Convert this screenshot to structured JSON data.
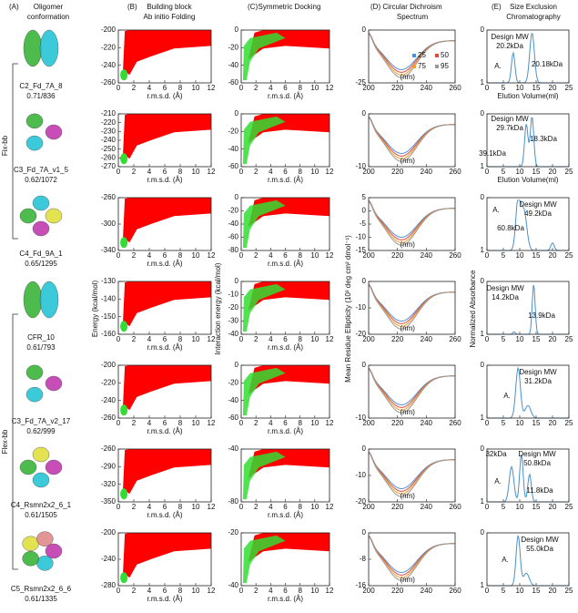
{
  "headers": [
    {
      "letter": "(A)",
      "lines": [
        "Oligomer",
        "conformation"
      ]
    },
    {
      "letter": "(B)",
      "lines": [
        "Building block",
        "Ab initio Folding"
      ]
    },
    {
      "letter": "(C)",
      "lines": [
        "Symmetric Docking"
      ]
    },
    {
      "letter": "(D)",
      "lines": [
        "Circular Dichroism",
        "Spectrum"
      ]
    },
    {
      "letter": "(E)",
      "lines": [
        "Size Exclusion",
        "Chromatography"
      ]
    }
  ],
  "side_labels": [
    "Fix-bb",
    "Flex-bb"
  ],
  "axis_titles": {
    "energy": "Energy (kcal/mol)",
    "interaction": "Interaction energy (kcal/mol)",
    "ellipticity": "Mean Residue Ellipticity (10³ deg cm² dmol⁻¹)",
    "absorbance": "Normalized Absorbance"
  },
  "xlabels": {
    "rmsd": "r.m.s.d. (Å)",
    "nm": "(nm)",
    "elution": "Elution Volume(ml)"
  },
  "xticks": {
    "rmsd": [
      0,
      2,
      4,
      6,
      8,
      10,
      12
    ],
    "nm": [
      200,
      220,
      240,
      260
    ],
    "elution": [
      0,
      5,
      10,
      15,
      20,
      25
    ]
  },
  "cd_legend": [
    25,
    50,
    75,
    95
  ],
  "rows": [
    {
      "name": "C2_Fd_7A_8",
      "score": "0.71/836",
      "folding_yticks": [
        -200,
        -220,
        -240,
        -260
      ],
      "docking_yticks": [
        0,
        -20,
        -40,
        -60
      ],
      "cd_yticks": [
        0,
        -25
      ],
      "sec_yticks": [
        0,
        1
      ],
      "sec_notes": [
        "Design MW",
        "20.2kDa",
        "A.",
        "20.18kDa"
      ]
    },
    {
      "name": "C3_Fd_7A_v1_5",
      "score": "0.62/1072",
      "folding_yticks": [
        -210,
        -220,
        -230,
        -240,
        -250,
        -260,
        -270
      ],
      "docking_yticks": [
        0,
        -20,
        -40,
        -60
      ],
      "cd_yticks": [
        0,
        -10
      ],
      "sec_yticks": [
        0,
        1
      ],
      "sec_notes": [
        "Design MW",
        "29.7kDa",
        "39.1kDa",
        "18.3kDa"
      ]
    },
    {
      "name": "C4_Fd_9A_1",
      "score": "0.65/1295",
      "folding_yticks": [
        -260,
        -300,
        -340
      ],
      "docking_yticks": [
        0,
        -20,
        -40,
        -60,
        -80
      ],
      "cd_yticks": [
        5,
        0,
        -5,
        -10,
        -15
      ],
      "sec_yticks": [
        0,
        1
      ],
      "sec_notes": [
        "Design MW",
        "49.2kDa",
        "A.",
        "60.8kDa"
      ]
    },
    {
      "name": "CFR_10",
      "score": "0.61/793",
      "folding_yticks": [
        -130,
        -140,
        -150,
        -160
      ],
      "docking_yticks": [
        0,
        -10,
        -20,
        -30,
        -40
      ],
      "cd_yticks": [
        0,
        -10,
        -20
      ],
      "sec_yticks": [
        0,
        1
      ],
      "sec_notes": [
        "Design MW",
        "14.2kDa",
        "13.9kDa"
      ]
    },
    {
      "name": "C3_Fd_7A_v2_17",
      "score": "0.62/999",
      "folding_yticks": [
        -200,
        -220,
        -240,
        -260
      ],
      "docking_yticks": [
        0,
        -20,
        -40,
        -60
      ],
      "cd_yticks": [
        0,
        -10
      ],
      "sec_yticks": [
        0,
        1
      ],
      "sec_notes": [
        "Design MW",
        "31.2kDa",
        "A."
      ]
    },
    {
      "name": "C4_Rsmn2x2_6_1",
      "score": "0.61/1505",
      "folding_yticks": [
        -260,
        -290,
        -320,
        -350
      ],
      "docking_yticks": [
        -40,
        -80
      ],
      "cd_yticks": [
        0,
        -10,
        -20
      ],
      "sec_yticks": [
        0,
        1
      ],
      "sec_notes": [
        "32kDa",
        "Design MW",
        "50.8kDa",
        "A.",
        "11.8kDa"
      ]
    },
    {
      "name": "C5_Rsmn2x2_6_6",
      "score": "0.61/1335",
      "folding_yticks": [
        -200,
        -240,
        -280
      ],
      "docking_yticks": [
        -20,
        -40
      ],
      "cd_yticks": [
        0,
        -8,
        -16
      ],
      "sec_yticks": [
        0,
        1
      ],
      "sec_notes": [
        "Design MW",
        "55.0kDa",
        "A."
      ]
    }
  ]
}
